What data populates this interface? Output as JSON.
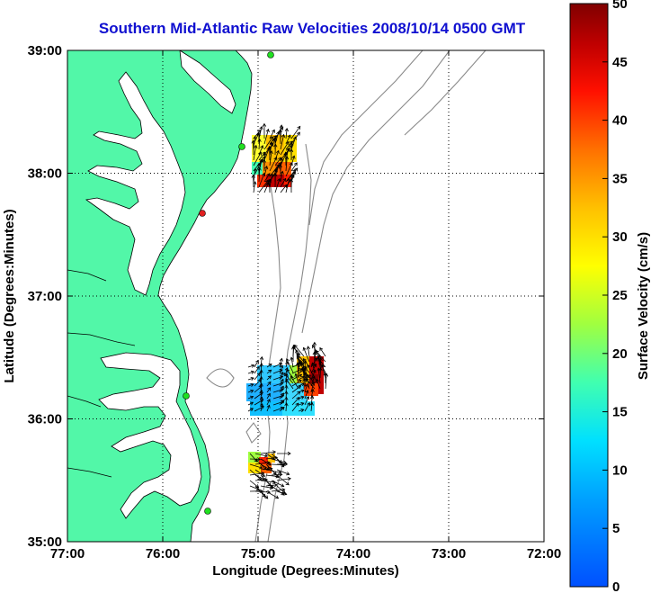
{
  "title": "Southern Mid-Atlantic Raw Velocities 2008/10/14 0500 GMT",
  "xlabel": "Longitude (Degrees:Minutes)",
  "ylabel": "Latitude (Degrees:Minutes)",
  "x_ticks": [
    "77:00",
    "76:00",
    "75:00",
    "74:00",
    "73:00",
    "72:00"
  ],
  "y_ticks": [
    "39:00",
    "38:00",
    "37:00",
    "36:00",
    "35:00"
  ],
  "colorbar": {
    "label": "Surface Velocity (cm/s)",
    "ticks": [
      "0",
      "5",
      "10",
      "15",
      "20",
      "25",
      "30",
      "35",
      "40",
      "45",
      "50"
    ],
    "range": [
      0,
      50
    ]
  },
  "colors": {
    "land": "#52f7a8",
    "title": "#1010d0",
    "contour": "#888888",
    "station": "#20e020"
  }
}
